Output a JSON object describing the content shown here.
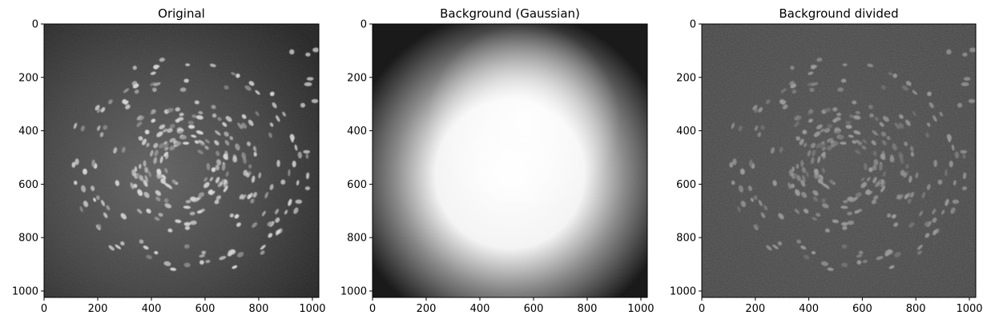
{
  "panels": [
    {
      "title": "Original",
      "image": "fluorescence-nuclei-raw",
      "x_ticks": [
        "0",
        "200",
        "400",
        "600",
        "800",
        "1000"
      ],
      "y_ticks": [
        "0",
        "200",
        "400",
        "600",
        "800",
        "1000"
      ]
    },
    {
      "title": "Background (Gaussian)",
      "image": "gaussian-blurred-background",
      "x_ticks": [
        "0",
        "200",
        "400",
        "600",
        "800",
        "1000"
      ],
      "y_ticks": [
        "0",
        "200",
        "400",
        "600",
        "800",
        "1000"
      ]
    },
    {
      "title": "Background divided",
      "image": "background-corrected-nuclei",
      "x_ticks": [
        "0",
        "200",
        "400",
        "600",
        "800",
        "1000"
      ],
      "y_ticks": [
        "0",
        "200",
        "400",
        "600",
        "800",
        "1000"
      ]
    }
  ],
  "axis_range": [
    0,
    1024
  ],
  "colormap": "gray"
}
